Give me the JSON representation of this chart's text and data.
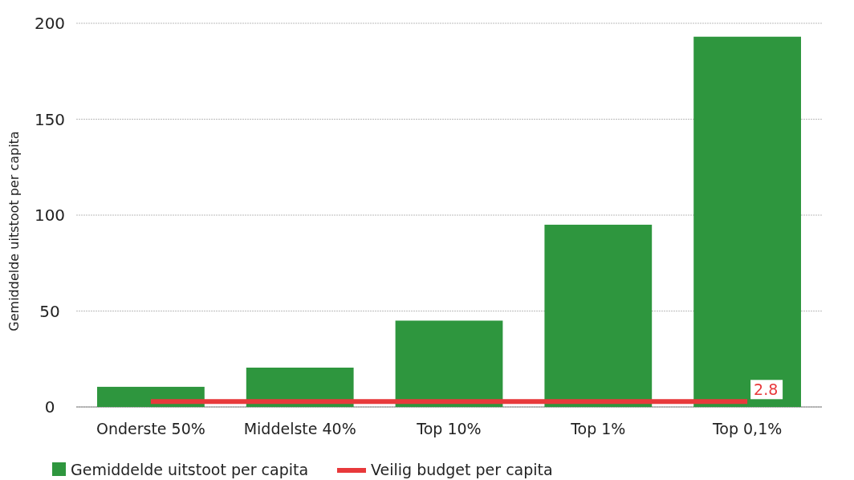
{
  "chart_data": {
    "type": "bar",
    "ylabel": "Gemiddelde uitstoot per capita",
    "categories": [
      "Onderste 50%",
      "Middelste 40%",
      "Top 10%",
      "Top 1%",
      "Top 0,1%"
    ],
    "series": [
      {
        "name": "Gemiddelde uitstoot per capita",
        "color": "#2e963e",
        "values": [
          10.5,
          20.5,
          45,
          95,
          193
        ]
      },
      {
        "name": "Veilig budget per capita",
        "type": "line",
        "color": "#e8393b",
        "values": [
          2.8,
          2.8,
          2.8,
          2.8,
          2.8
        ],
        "value_labels": [
          null,
          null,
          null,
          null,
          "2.8"
        ]
      }
    ],
    "ylim": [
      0,
      200
    ],
    "yticks": [
      0,
      50,
      100,
      150,
      200
    ],
    "grid": "y",
    "legend": "bottom left"
  }
}
